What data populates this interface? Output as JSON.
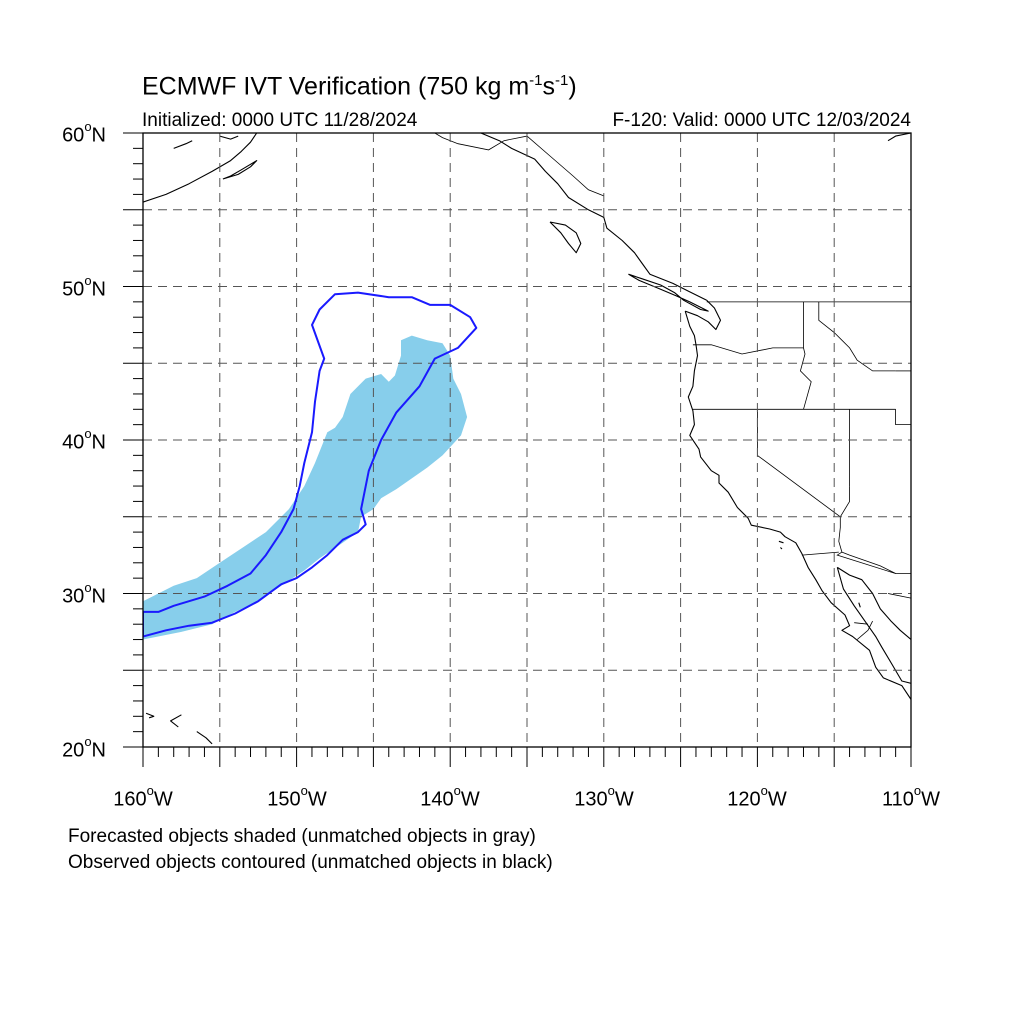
{
  "title": {
    "main": "ECMWF IVT Verification (750 kg m",
    "exp1": "-1",
    "mid": "s",
    "exp2": "-1",
    "end": ")"
  },
  "initialized": "Initialized: 0000 UTC 11/28/2024",
  "valid": "F-120: Valid: 0000 UTC 12/03/2024",
  "lat_labels": [
    {
      "num": "60",
      "deg": "o",
      "hem": "N"
    },
    {
      "num": "50",
      "deg": "o",
      "hem": "N"
    },
    {
      "num": "40",
      "deg": "o",
      "hem": "N"
    },
    {
      "num": "30",
      "deg": "o",
      "hem": "N"
    },
    {
      "num": "20",
      "deg": "o",
      "hem": "N"
    }
  ],
  "lon_labels": [
    {
      "num": "160",
      "deg": "o",
      "hem": "W"
    },
    {
      "num": "150",
      "deg": "o",
      "hem": "W"
    },
    {
      "num": "140",
      "deg": "o",
      "hem": "W"
    },
    {
      "num": "130",
      "deg": "o",
      "hem": "W"
    },
    {
      "num": "120",
      "deg": "o",
      "hem": "W"
    },
    {
      "num": "110",
      "deg": "o",
      "hem": "W"
    }
  ],
  "notes": {
    "forecast": "Forecasted objects shaded (unmatched objects in gray)",
    "observed": "Observed objects contoured (unmatched objects in black)"
  },
  "map": {
    "extent": {
      "lon_min": -160,
      "lon_max": -110,
      "lat_min": 20,
      "lat_max": 60
    },
    "grid_lons": [
      -155,
      -150,
      -145,
      -140,
      -135,
      -130,
      -125,
      -120,
      -115
    ],
    "grid_lats": [
      25,
      30,
      35,
      40,
      45,
      50,
      55
    ],
    "colors": {
      "forecast_fill": "#87ceeb",
      "observed_contour": "#1a1aff",
      "coastline": "#000000",
      "grid": "#555555"
    },
    "forecast_object": [
      [
        -160,
        29.5
      ],
      [
        -158,
        30.5
      ],
      [
        -156.5,
        31
      ],
      [
        -155,
        32
      ],
      [
        -153.5,
        33
      ],
      [
        -152,
        34
      ],
      [
        -150.5,
        35.5
      ],
      [
        -149.5,
        37
      ],
      [
        -148.8,
        38.5
      ],
      [
        -148,
        40.5
      ],
      [
        -147.5,
        40.8
      ],
      [
        -147,
        41.5
      ],
      [
        -146.5,
        43
      ],
      [
        -145.5,
        44
      ],
      [
        -144.5,
        44.3
      ],
      [
        -144,
        43.8
      ],
      [
        -143.6,
        44.2
      ],
      [
        -143.2,
        45.5
      ],
      [
        -143.2,
        46.5
      ],
      [
        -142.5,
        46.8
      ],
      [
        -141.5,
        46.5
      ],
      [
        -140.5,
        46.3
      ],
      [
        -140,
        45.5
      ],
      [
        -139.8,
        44
      ],
      [
        -139.3,
        43
      ],
      [
        -138.9,
        41.5
      ],
      [
        -139.3,
        40.3
      ],
      [
        -140.5,
        39
      ],
      [
        -141.5,
        38.2
      ],
      [
        -142.5,
        37.5
      ],
      [
        -143.5,
        36.8
      ],
      [
        -144.5,
        36.2
      ],
      [
        -145,
        35.5
      ],
      [
        -145.8,
        35
      ],
      [
        -146,
        34
      ],
      [
        -147,
        33.3
      ],
      [
        -148.5,
        32.3
      ],
      [
        -149.5,
        31.5
      ],
      [
        -151,
        30.5
      ],
      [
        -152.5,
        29.5
      ],
      [
        -154,
        28.8
      ],
      [
        -155.5,
        28
      ],
      [
        -157.5,
        27.5
      ],
      [
        -160,
        27
      ]
    ],
    "observed_object": [
      [
        -160,
        28.8
      ],
      [
        -159,
        28.8
      ],
      [
        -158,
        29.2
      ],
      [
        -156,
        29.8
      ],
      [
        -154.5,
        30.5
      ],
      [
        -153,
        31.3
      ],
      [
        -152,
        32.5
      ],
      [
        -151,
        34
      ],
      [
        -150.2,
        35.5
      ],
      [
        -149.8,
        37
      ],
      [
        -149.5,
        38.5
      ],
      [
        -149,
        40.5
      ],
      [
        -148.8,
        42.5
      ],
      [
        -148.5,
        44.5
      ],
      [
        -148.2,
        45.3
      ],
      [
        -149,
        47.5
      ],
      [
        -148.5,
        48.5
      ],
      [
        -147.5,
        49.5
      ],
      [
        -146,
        49.6
      ],
      [
        -144,
        49.3
      ],
      [
        -142.5,
        49.3
      ],
      [
        -141.3,
        48.8
      ],
      [
        -140,
        48.8
      ],
      [
        -138.7,
        48
      ],
      [
        -138.3,
        47.3
      ],
      [
        -139.5,
        46
      ],
      [
        -141,
        45.3
      ],
      [
        -142,
        43.5
      ],
      [
        -143.5,
        41.8
      ],
      [
        -144.5,
        40
      ],
      [
        -145.3,
        38
      ],
      [
        -145.8,
        35.5
      ],
      [
        -145.5,
        34.5
      ],
      [
        -146,
        34
      ],
      [
        -147,
        33.5
      ],
      [
        -148,
        32.5
      ],
      [
        -149,
        31.7
      ],
      [
        -150,
        31
      ],
      [
        -151,
        30.6
      ],
      [
        -152.5,
        29.5
      ],
      [
        -154,
        28.7
      ],
      [
        -155.5,
        28.1
      ],
      [
        -157,
        27.9
      ],
      [
        -158.5,
        27.6
      ],
      [
        -160,
        27.2
      ]
    ],
    "coastlines": [
      [
        [
          -160,
          55.5
        ],
        [
          -158.5,
          56
        ],
        [
          -157,
          56.7
        ],
        [
          -155.5,
          57.5
        ],
        [
          -154.3,
          58.2
        ],
        [
          -153.6,
          58.8
        ],
        [
          -153,
          59.4
        ],
        [
          -152.6,
          60
        ]
      ],
      [
        [
          -158,
          59
        ],
        [
          -157.2,
          59.3
        ],
        [
          -156.8,
          59.5
        ]
      ],
      [
        [
          -154.8,
          57
        ],
        [
          -153.8,
          57.3
        ],
        [
          -153,
          57.8
        ],
        [
          -152.6,
          58.2
        ],
        [
          -153.6,
          57.6
        ],
        [
          -154.3,
          57.2
        ],
        [
          -154.8,
          57
        ]
      ],
      [
        [
          -155,
          59.8
        ],
        [
          -154.3,
          59.6
        ],
        [
          -153.8,
          59.8
        ]
      ],
      [
        [
          -138,
          60
        ],
        [
          -136.8,
          59.5
        ],
        [
          -136,
          59
        ],
        [
          -134.5,
          58.3
        ],
        [
          -133.8,
          57.5
        ],
        [
          -133,
          56.7
        ],
        [
          -132.3,
          55.8
        ],
        [
          -131,
          55
        ],
        [
          -130,
          54.5
        ],
        [
          -129.8,
          53.8
        ],
        [
          -128.8,
          53
        ],
        [
          -128,
          52.2
        ],
        [
          -127.5,
          51.5
        ],
        [
          -127,
          50.8
        ],
        [
          -125.5,
          50.2
        ],
        [
          -124.5,
          49.7
        ],
        [
          -123.3,
          49.1
        ]
      ],
      [
        [
          -133.5,
          54.2
        ],
        [
          -132.5,
          54
        ],
        [
          -131.8,
          53.5
        ],
        [
          -131.5,
          52.8
        ],
        [
          -131.8,
          52.2
        ],
        [
          -132.3,
          52.8
        ],
        [
          -132.8,
          53.5
        ],
        [
          -133.5,
          54.2
        ]
      ],
      [
        [
          -128.4,
          50.8
        ],
        [
          -127.5,
          50.5
        ],
        [
          -126.3,
          50.1
        ],
        [
          -125.4,
          49.6
        ],
        [
          -124.8,
          49.1
        ],
        [
          -123.7,
          48.5
        ],
        [
          -123.2,
          48.4
        ],
        [
          -124.4,
          49
        ],
        [
          -125.3,
          49.4
        ],
        [
          -126.5,
          49.9
        ],
        [
          -127.7,
          50.4
        ],
        [
          -128.4,
          50.8
        ]
      ],
      [
        [
          -123.3,
          49.1
        ],
        [
          -122.8,
          48.6
        ],
        [
          -122.4,
          47.8
        ],
        [
          -122.7,
          47.2
        ],
        [
          -123.2,
          47.7
        ],
        [
          -123.9,
          48.1
        ],
        [
          -124.7,
          48.4
        ]
      ],
      [
        [
          -124.7,
          48.4
        ],
        [
          -124.4,
          47.4
        ],
        [
          -124.1,
          46.8
        ],
        [
          -124,
          46.2
        ],
        [
          -123.9,
          45.5
        ],
        [
          -124.1,
          44.5
        ],
        [
          -124.2,
          43.5
        ],
        [
          -124.5,
          42.8
        ],
        [
          -124.2,
          41.9
        ],
        [
          -124.1,
          41
        ],
        [
          -124.4,
          40.3
        ],
        [
          -123.8,
          39.4
        ],
        [
          -123.7,
          38.9
        ],
        [
          -123,
          38
        ],
        [
          -122.5,
          37.7
        ],
        [
          -122.5,
          37.2
        ],
        [
          -121.9,
          36.6
        ],
        [
          -121.3,
          35.6
        ],
        [
          -120.6,
          34.9
        ],
        [
          -120.4,
          34.45
        ],
        [
          -119.2,
          34.2
        ],
        [
          -118.5,
          34
        ],
        [
          -118.2,
          33.7
        ],
        [
          -117.5,
          33.3
        ],
        [
          -117.1,
          32.6
        ],
        [
          -116.7,
          31.7
        ],
        [
          -116.2,
          30.9
        ],
        [
          -115.8,
          30.2
        ],
        [
          -115.2,
          29.4
        ],
        [
          -114.3,
          28.6
        ],
        [
          -114,
          27.9
        ],
        [
          -114.5,
          27.6
        ],
        [
          -113.8,
          27.2
        ],
        [
          -112.7,
          26.3
        ],
        [
          -112.3,
          25.2
        ],
        [
          -111.8,
          24.5
        ],
        [
          -110.6,
          24
        ],
        [
          -110,
          23.1
        ],
        [
          -109.4,
          23.2
        ],
        [
          -109.8,
          24.1
        ],
        [
          -110.6,
          24.3
        ],
        [
          -111.3,
          25.5
        ],
        [
          -111.9,
          26.5
        ],
        [
          -112.3,
          27.2
        ],
        [
          -113,
          28.2
        ],
        [
          -113.7,
          29.2
        ],
        [
          -114.4,
          30.3
        ],
        [
          -114.8,
          31.7
        ]
      ],
      [
        [
          -114.8,
          31.7
        ],
        [
          -114,
          31.2
        ],
        [
          -113.2,
          30.9
        ],
        [
          -112.5,
          30
        ],
        [
          -112,
          29
        ],
        [
          -111.3,
          28.2
        ],
        [
          -110.7,
          27.6
        ],
        [
          -110,
          27
        ],
        [
          -110,
          27
        ]
      ],
      [
        [
          -110,
          60
        ],
        [
          -111,
          59.8
        ],
        [
          -111.5,
          59.5
        ]
      ],
      [
        [
          -157.5,
          22.1
        ],
        [
          -158.2,
          21.7
        ],
        [
          -157.7,
          21.3
        ]
      ],
      [
        [
          -159.8,
          22.2
        ],
        [
          -159.3,
          22
        ],
        [
          -159.6,
          21.9
        ]
      ],
      [
        [
          -156.5,
          21
        ],
        [
          -155.9,
          20.6
        ],
        [
          -155.5,
          20.2
        ]
      ],
      [
        [
          -118.6,
          33.4
        ],
        [
          -118.3,
          33.3
        ]
      ],
      [
        [
          -118.4,
          32.9
        ],
        [
          -118.5,
          33
        ]
      ],
      [
        [
          -113.4,
          29.4
        ],
        [
          -113.3,
          29.1
        ]
      ]
    ],
    "borders": [
      [
        [
          -141,
          60
        ],
        [
          -140.5,
          59.7
        ],
        [
          -139.5,
          59.3
        ],
        [
          -137.5,
          58.9
        ],
        [
          -136.5,
          59.5
        ],
        [
          -135,
          59.8
        ],
        [
          -133.5,
          58.5
        ],
        [
          -132,
          57.2
        ],
        [
          -131,
          56.3
        ],
        [
          -130,
          55.9
        ]
      ],
      [
        [
          -123.3,
          49
        ],
        [
          -110,
          49
        ]
      ],
      [
        [
          -117,
          49
        ],
        [
          -117,
          46
        ],
        [
          -116.9,
          45.6
        ],
        [
          -117.2,
          44.5
        ],
        [
          -116.5,
          43.8
        ],
        [
          -117,
          42
        ]
      ],
      [
        [
          -116,
          49
        ],
        [
          -116,
          47.8
        ],
        [
          -115,
          47
        ],
        [
          -114.5,
          46.5
        ],
        [
          -114,
          46
        ],
        [
          -113.5,
          45.2
        ],
        [
          -112.5,
          44.5
        ],
        [
          -111,
          44.5
        ]
      ],
      [
        [
          -124.2,
          46.2
        ],
        [
          -123,
          46.2
        ],
        [
          -121,
          45.6
        ],
        [
          -119,
          46
        ],
        [
          -117,
          46
        ]
      ],
      [
        [
          -124.2,
          42
        ],
        [
          -111,
          42
        ]
      ],
      [
        [
          -120,
          42
        ],
        [
          -120,
          39
        ],
        [
          -114.6,
          35
        ],
        [
          -114.6,
          34.3
        ],
        [
          -114.7,
          33.4
        ],
        [
          -114.5,
          32.7
        ],
        [
          -114.8,
          32.5
        ],
        [
          -111,
          31.3
        ]
      ],
      [
        [
          -117.1,
          32.5
        ],
        [
          -114.7,
          32.7
        ]
      ],
      [
        [
          -114,
          42
        ],
        [
          -114,
          37
        ]
      ],
      [
        [
          -114,
          37
        ],
        [
          -114,
          36
        ],
        [
          -114.6,
          35
        ]
      ],
      [
        [
          -111,
          42
        ],
        [
          -111,
          41
        ],
        [
          -110,
          41
        ]
      ],
      [
        [
          -111,
          44.5
        ],
        [
          -110,
          44.5
        ]
      ],
      [
        [
          -114.5,
          32.7
        ],
        [
          -114,
          32.5
        ],
        [
          -112,
          31.8
        ],
        [
          -111,
          31.3
        ],
        [
          -110,
          31.3
        ]
      ],
      [
        [
          -111.5,
          30
        ],
        [
          -110,
          29.7
        ]
      ],
      [
        [
          -113.5,
          27
        ],
        [
          -112.8,
          27.6
        ],
        [
          -112.5,
          28.2
        ]
      ],
      [
        [
          -113.7,
          28.1
        ],
        [
          -112.8,
          28
        ]
      ]
    ]
  }
}
